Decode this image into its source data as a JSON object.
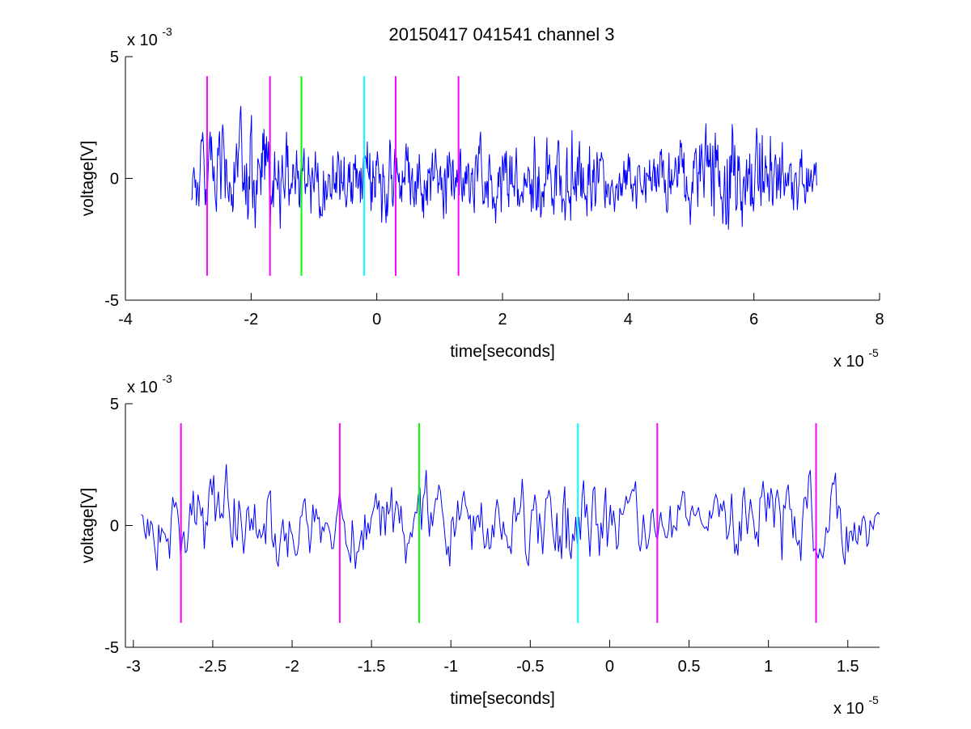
{
  "figure": {
    "title": "20150417 041541 channel 3",
    "background": "#ffffff"
  },
  "chart_data": [
    {
      "type": "line",
      "xlabel": "time[seconds]",
      "ylabel": "voltage[V]",
      "x_exponent_label": "x 10",
      "x_exponent": "-5",
      "y_exponent_label": "x 10",
      "y_exponent": "-3",
      "xlim": [
        -4e-05,
        8e-05
      ],
      "ylim": [
        -0.005,
        0.005
      ],
      "xticks": [
        -4e-05,
        -2e-05,
        0,
        2e-05,
        4e-05,
        6e-05,
        8e-05
      ],
      "xtick_labels": [
        "-4",
        "-2",
        "0",
        "2",
        "4",
        "6",
        "8"
      ],
      "yticks": [
        -0.005,
        0,
        0.005
      ],
      "ytick_labels": [
        "-5",
        "0",
        "5"
      ],
      "grid": false,
      "signal": {
        "color": "#0000ff",
        "x_start": -2.95e-05,
        "x_end": 7e-05,
        "samples": 1000,
        "note_values": "dense noisy voltage trace, amplitude roughly within ±0.0037 V"
      },
      "markers": [
        {
          "x": -2.7e-05,
          "color": "#ff00ff",
          "y_range": [
            -0.004,
            0.0042
          ]
        },
        {
          "x": -1.7e-05,
          "color": "#ff00ff",
          "y_range": [
            -0.004,
            0.0042
          ]
        },
        {
          "x": -1.2e-05,
          "color": "#00ff00",
          "y_range": [
            -0.004,
            0.0042
          ]
        },
        {
          "x": -2e-06,
          "color": "#00ffff",
          "y_range": [
            -0.004,
            0.0042
          ]
        },
        {
          "x": 3e-06,
          "color": "#ff00ff",
          "y_range": [
            -0.004,
            0.0042
          ]
        },
        {
          "x": 1.3e-05,
          "color": "#ff00ff",
          "y_range": [
            -0.004,
            0.0042
          ]
        }
      ]
    },
    {
      "type": "line",
      "xlabel": "time[seconds]",
      "ylabel": "voltage[V]",
      "x_exponent_label": "x 10",
      "x_exponent": "-5",
      "y_exponent_label": "x 10",
      "y_exponent": "-3",
      "xlim": [
        -3.05e-05,
        1.7e-05
      ],
      "ylim": [
        -0.005,
        0.005
      ],
      "xticks": [
        -3e-05,
        -2.5e-05,
        -2e-05,
        -1.5e-05,
        -1e-05,
        -5e-06,
        0,
        5e-06,
        1e-05,
        1.5e-05
      ],
      "xtick_labels": [
        "-3",
        "-2.5",
        "-2",
        "-1.5",
        "-1",
        "-0.5",
        "0",
        "0.5",
        "1",
        "1.5"
      ],
      "yticks": [
        -0.005,
        0,
        0.005
      ],
      "ytick_labels": [
        "-5",
        "0",
        "5"
      ],
      "grid": false,
      "signal": {
        "color": "#0000ff",
        "x_start": -2.95e-05,
        "x_end": 1.7e-05,
        "samples": 470,
        "note_values": "zoomed segment of the same trace, amplitude roughly within ±0.0037 V"
      },
      "markers": [
        {
          "x": -2.7e-05,
          "color": "#ff00ff",
          "y_range": [
            -0.004,
            0.0042
          ]
        },
        {
          "x": -1.7e-05,
          "color": "#ff00ff",
          "y_range": [
            -0.004,
            0.0042
          ]
        },
        {
          "x": -1.2e-05,
          "color": "#00ff00",
          "y_range": [
            -0.004,
            0.0042
          ]
        },
        {
          "x": -2e-06,
          "color": "#00ffff",
          "y_range": [
            -0.004,
            0.0042
          ]
        },
        {
          "x": 3e-06,
          "color": "#ff00ff",
          "y_range": [
            -0.004,
            0.0042
          ]
        },
        {
          "x": 1.3e-05,
          "color": "#ff00ff",
          "y_range": [
            -0.004,
            0.0042
          ]
        }
      ]
    }
  ]
}
